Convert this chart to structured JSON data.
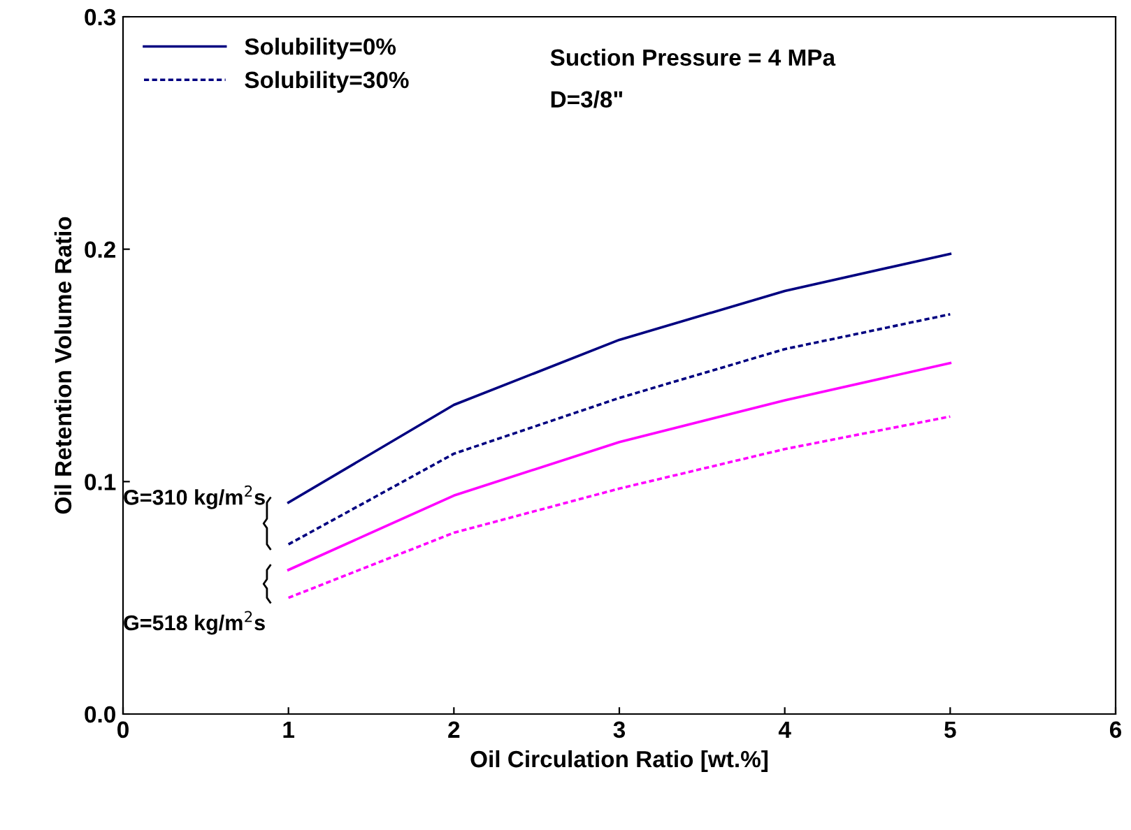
{
  "chart_data": {
    "type": "line",
    "xlabel": "Oil Circulation Ratio [wt.%]",
    "ylabel": "Oil Retention Volume Ratio",
    "x": [
      1,
      2,
      3,
      4,
      5
    ],
    "series": [
      {
        "name": "Solubility=0%",
        "color": "#000080",
        "line_style": "solid",
        "values": [
          0.091,
          0.133,
          0.161,
          0.182,
          0.198
        ]
      },
      {
        "name": "Solubility=30%",
        "color": "#000080",
        "line_style": "dashed",
        "values": [
          0.073,
          0.112,
          0.136,
          0.157,
          0.172
        ]
      },
      {
        "color": "#ff00ff",
        "line_style": "solid",
        "values": [
          0.062,
          0.094,
          0.117,
          0.135,
          0.151
        ]
      },
      {
        "color": "#ff00ff",
        "line_style": "dashed",
        "values": [
          0.05,
          0.078,
          0.097,
          0.114,
          0.128
        ]
      }
    ],
    "xlim": [
      0,
      6
    ],
    "xticks": [
      0,
      1,
      2,
      3,
      4,
      5,
      6
    ],
    "ylim": [
      0,
      0.3
    ],
    "yticks": [
      {
        "value": 0,
        "label": "0.0"
      },
      {
        "value": 0.1,
        "label": "0.1"
      },
      {
        "value": 0.2,
        "label": "0.2"
      },
      {
        "value": 0.3,
        "label": "0.3"
      }
    ],
    "grid": false,
    "legend": "top left",
    "marker": "none",
    "annotations": [
      "Suction Pressure = 4 MPa",
      "D=3/8\"",
      "G=310 kg/m$^{2}$s",
      "G=518 kg/m$^{2}$s"
    ]
  }
}
